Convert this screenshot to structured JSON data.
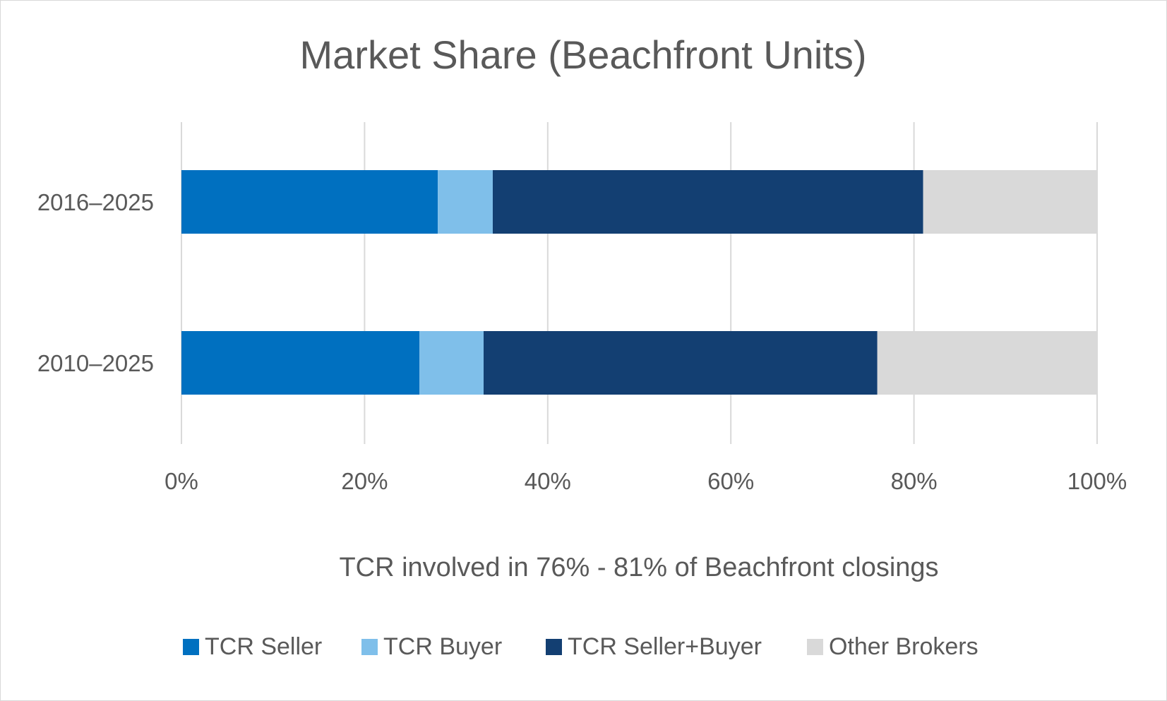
{
  "chart_data": {
    "type": "bar",
    "orientation": "horizontal",
    "stacked": true,
    "title": "Market Share (Beachfront Units)",
    "categories": [
      "2016–2025",
      "2010–2025"
    ],
    "series": [
      {
        "name": "TCR Seller",
        "values": [
          28,
          26
        ],
        "color": "#0070c0"
      },
      {
        "name": "TCR Buyer",
        "values": [
          6,
          7
        ],
        "color": "#7fbfea"
      },
      {
        "name": "TCR Seller+Buyer",
        "values": [
          47,
          43
        ],
        "color": "#133f72"
      },
      {
        "name": "Other Brokers",
        "values": [
          19,
          24
        ],
        "color": "#d9d9d9"
      }
    ],
    "xlim": [
      0,
      100
    ],
    "xticks": [
      "0%",
      "20%",
      "40%",
      "60%",
      "80%",
      "100%"
    ],
    "xlabel": "",
    "ylabel": "",
    "annotation": "TCR involved in 76% - 81% of Beachfront closings",
    "grid": true,
    "gridline_color": "#d9d9d9",
    "legend_position": "bottom"
  }
}
